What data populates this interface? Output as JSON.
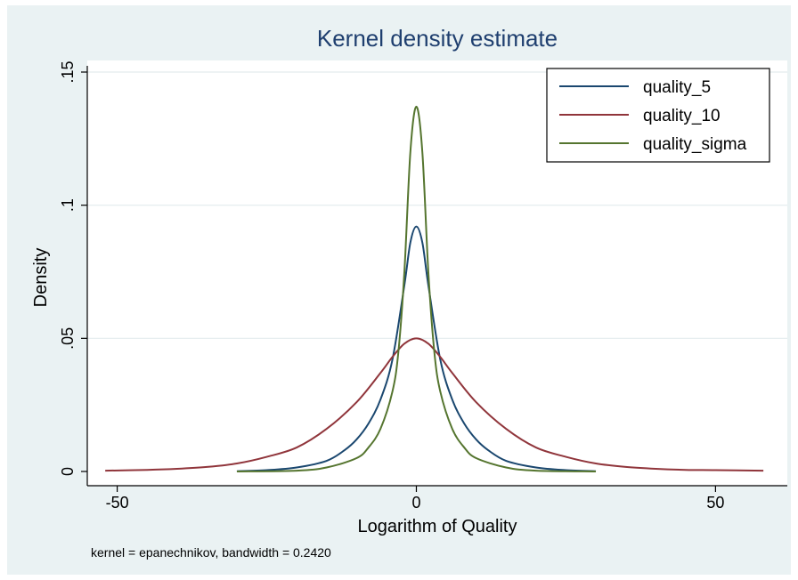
{
  "chart_data": {
    "type": "line",
    "title": "Kernel density estimate",
    "xlabel": "Logarithm of Quality",
    "ylabel": "Density",
    "note": "kernel = epanechnikov, bandwidth = 0.2420",
    "xlim": [
      -55,
      62
    ],
    "ylim": [
      0,
      0.15
    ],
    "x_ticks": [
      {
        "value": -50,
        "label": "-50"
      },
      {
        "value": 0,
        "label": "0"
      },
      {
        "value": 50,
        "label": "50"
      }
    ],
    "y_ticks": [
      {
        "value": 0,
        "label": "0"
      },
      {
        "value": 0.05,
        "label": ".05"
      },
      {
        "value": 0.1,
        "label": ".1"
      },
      {
        "value": 0.15,
        "label": ".15"
      }
    ],
    "grid": true,
    "legend_position": "top-right",
    "series": [
      {
        "name": "quality_5",
        "color": "#1a476f",
        "x": [
          -30,
          -25,
          -20,
          -15,
          -12,
          -10,
          -8,
          -6,
          -4,
          -2,
          -1,
          0,
          1,
          2,
          4,
          6,
          8,
          10,
          12,
          15,
          20,
          25,
          30
        ],
        "y": [
          0.0001,
          0.0005,
          0.0015,
          0.004,
          0.008,
          0.012,
          0.018,
          0.027,
          0.042,
          0.07,
          0.086,
          0.092,
          0.086,
          0.07,
          0.042,
          0.027,
          0.018,
          0.012,
          0.008,
          0.004,
          0.0015,
          0.0005,
          0.0001
        ]
      },
      {
        "name": "quality_10",
        "color": "#90353b",
        "x": [
          -52,
          -45,
          -40,
          -35,
          -30,
          -25,
          -20,
          -15,
          -10,
          -6,
          -4,
          -2,
          0,
          2,
          4,
          6,
          10,
          15,
          20,
          25,
          30,
          35,
          40,
          45,
          50,
          58
        ],
        "y": [
          0.0003,
          0.0006,
          0.001,
          0.0017,
          0.003,
          0.0055,
          0.009,
          0.016,
          0.026,
          0.037,
          0.043,
          0.048,
          0.05,
          0.048,
          0.043,
          0.037,
          0.026,
          0.016,
          0.009,
          0.0055,
          0.003,
          0.0017,
          0.001,
          0.0006,
          0.0005,
          0.0003
        ]
      },
      {
        "name": "quality_sigma",
        "color": "#55752f",
        "x": [
          -30,
          -20,
          -15,
          -10,
          -8,
          -6,
          -4,
          -3,
          -2,
          -1,
          0,
          1,
          2,
          3,
          4,
          6,
          8,
          10,
          15,
          20,
          30
        ],
        "y": [
          0.0,
          0.0003,
          0.0015,
          0.005,
          0.009,
          0.016,
          0.03,
          0.045,
          0.075,
          0.12,
          0.137,
          0.12,
          0.075,
          0.045,
          0.03,
          0.016,
          0.009,
          0.005,
          0.0015,
          0.0003,
          0.0
        ]
      }
    ]
  }
}
